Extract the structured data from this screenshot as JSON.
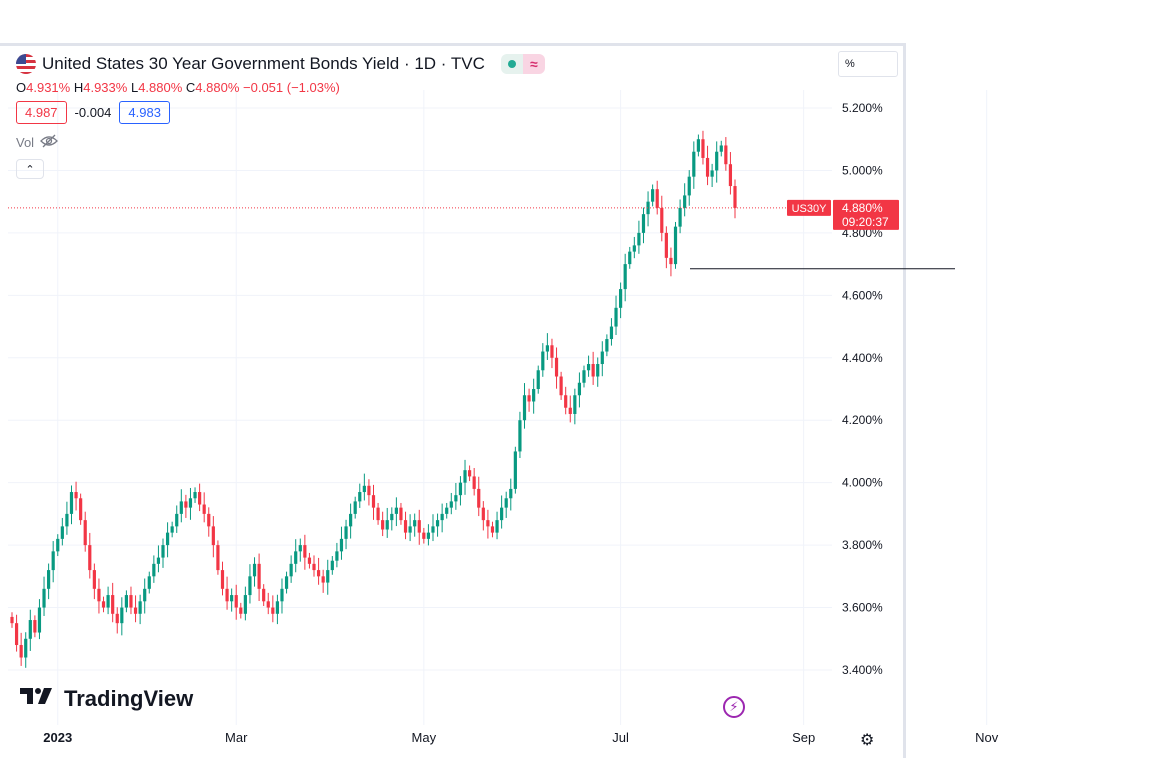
{
  "header": {
    "title": "United States 30 Year Government Bonds Yield · 1D · TVC",
    "ohlc": {
      "o_label": "O",
      "o": "4.931%",
      "h_label": "H",
      "h": "4.933%",
      "l_label": "L",
      "l": "4.880%",
      "c_label": "C",
      "c": "4.880%",
      "change": "−0.051 (−1.03%)"
    },
    "sell_price": "4.987",
    "spread": "-0.004",
    "buy_price": "4.983",
    "volume_label": "Vol",
    "scale_mode": "%",
    "brand": "TradingView"
  },
  "colors": {
    "up": "#089981",
    "down": "#f23645",
    "accent": "#2962ff",
    "grid": "#f0f3fa"
  },
  "chart_data": {
    "type": "candlestick",
    "symbol": "US30Y",
    "last_value_label": "4.880%",
    "countdown": "09:20:37",
    "ylim": [
      3.3,
      5.3
    ],
    "y_ticks": [
      "5.200%",
      "5.000%",
      "4.800%",
      "4.600%",
      "4.400%",
      "4.200%",
      "4.000%",
      "3.800%",
      "3.600%",
      "3.400%"
    ],
    "y_tick_values": [
      5.2,
      5.0,
      4.8,
      4.6,
      4.4,
      4.2,
      4.0,
      3.8,
      3.6,
      3.4
    ],
    "x_ticks": [
      "2023",
      "Mar",
      "May",
      "Jul",
      "Sep",
      "Nov"
    ],
    "x_tick_day_index": [
      10,
      49,
      90,
      133,
      173,
      213
    ],
    "last_close": 4.88,
    "horizontal_line_value": 4.685,
    "closes": [
      3.55,
      3.48,
      3.44,
      3.5,
      3.56,
      3.52,
      3.6,
      3.66,
      3.72,
      3.78,
      3.82,
      3.86,
      3.9,
      3.97,
      3.95,
      3.88,
      3.8,
      3.72,
      3.66,
      3.62,
      3.6,
      3.64,
      3.58,
      3.55,
      3.6,
      3.64,
      3.6,
      3.58,
      3.62,
      3.66,
      3.7,
      3.74,
      3.76,
      3.8,
      3.84,
      3.86,
      3.9,
      3.94,
      3.92,
      3.95,
      3.97,
      3.93,
      3.9,
      3.86,
      3.8,
      3.72,
      3.66,
      3.62,
      3.64,
      3.6,
      3.58,
      3.64,
      3.7,
      3.74,
      3.66,
      3.62,
      3.6,
      3.58,
      3.62,
      3.66,
      3.7,
      3.74,
      3.78,
      3.8,
      3.76,
      3.74,
      3.72,
      3.7,
      3.68,
      3.72,
      3.75,
      3.78,
      3.82,
      3.86,
      3.9,
      3.94,
      3.97,
      3.99,
      3.96,
      3.92,
      3.88,
      3.85,
      3.88,
      3.9,
      3.92,
      3.88,
      3.84,
      3.86,
      3.88,
      3.84,
      3.82,
      3.84,
      3.86,
      3.88,
      3.9,
      3.92,
      3.94,
      3.96,
      4.0,
      4.04,
      4.02,
      3.98,
      3.92,
      3.88,
      3.86,
      3.84,
      3.88,
      3.92,
      3.95,
      3.98,
      4.1,
      4.2,
      4.28,
      4.26,
      4.3,
      4.36,
      4.42,
      4.44,
      4.4,
      4.34,
      4.28,
      4.24,
      4.22,
      4.28,
      4.32,
      4.36,
      4.38,
      4.34,
      4.38,
      4.42,
      4.46,
      4.5,
      4.56,
      4.62,
      4.7,
      4.74,
      4.76,
      4.8,
      4.86,
      4.9,
      4.94,
      4.88,
      4.8,
      4.72,
      4.7,
      4.82,
      4.88,
      4.92,
      4.98,
      5.06,
      5.1,
      5.04,
      4.98,
      5.0,
      5.06,
      5.08,
      5.02,
      4.95,
      4.88
    ]
  }
}
